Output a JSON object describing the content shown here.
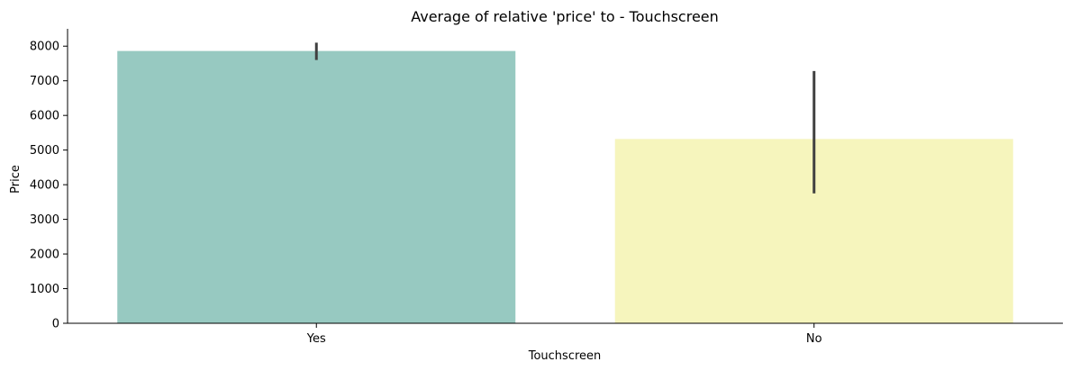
{
  "chart_data": {
    "type": "bar",
    "title": "Average of relative 'price' to - Touchscreen",
    "xlabel": "Touchscreen",
    "ylabel": "Price",
    "categories": [
      "Yes",
      "No"
    ],
    "values": [
      7860,
      5320
    ],
    "error_bars": [
      {
        "low": 7600,
        "high": 8100
      },
      {
        "low": 3750,
        "high": 7280
      }
    ],
    "colors": [
      "#97c9c1",
      "#f6f5bd"
    ],
    "error_bar_color": "#404040",
    "ylim": [
      0,
      8500
    ],
    "yticks": [
      0,
      1000,
      2000,
      3000,
      4000,
      5000,
      6000,
      7000,
      8000
    ],
    "grid": false,
    "legend": "none"
  }
}
